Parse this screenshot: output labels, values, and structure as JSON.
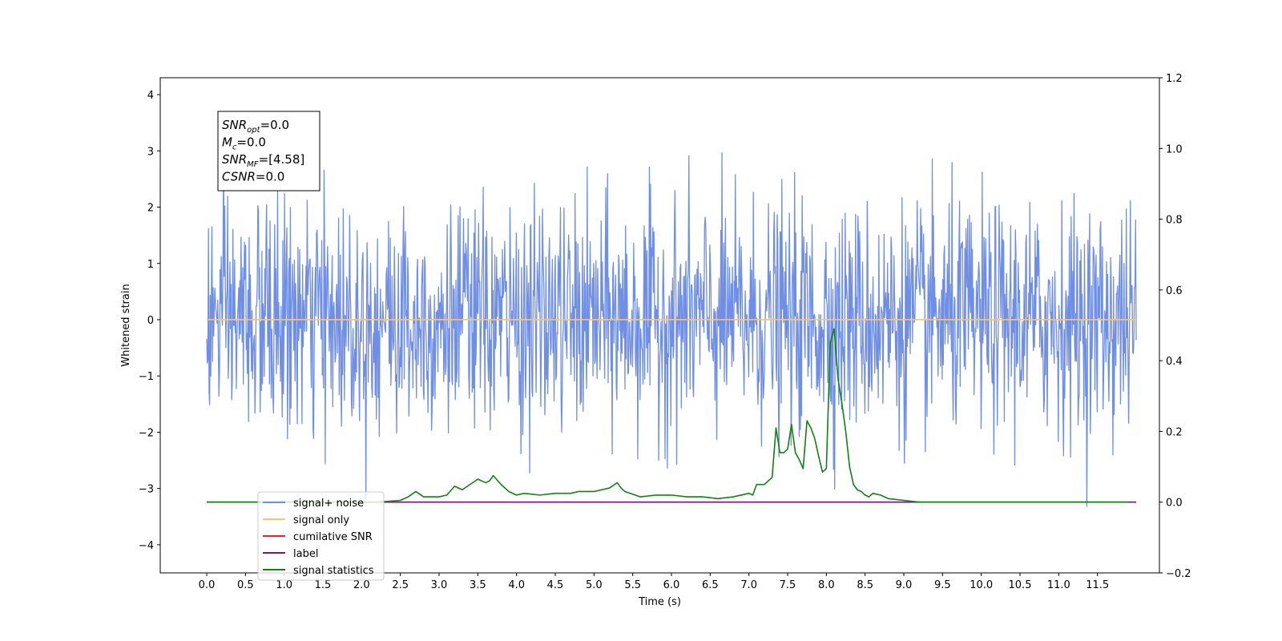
{
  "chart_data": {
    "type": "line",
    "xlabel": "Time (s)",
    "ylabel": "Whitened strain",
    "xlim": [
      -0.6,
      12.3
    ],
    "ylim": [
      -4.5,
      4.3
    ],
    "y2lim": [
      -0.2,
      1.2
    ],
    "x_ticks": [
      "0.0",
      "0.5",
      "1.0",
      "1.5",
      "2.0",
      "2.5",
      "3.0",
      "3.5",
      "4.0",
      "4.5",
      "5.0",
      "5.5",
      "6.0",
      "6.5",
      "7.0",
      "7.5",
      "8.0",
      "8.5",
      "9.0",
      "9.5",
      "10.0",
      "10.5",
      "11.0",
      "11.5"
    ],
    "y_ticks": [
      "−4",
      "−3",
      "−2",
      "−1",
      "0",
      "1",
      "2",
      "3",
      "4"
    ],
    "y2_ticks": [
      "−0.2",
      "0.0",
      "0.2",
      "0.4",
      "0.6",
      "0.8",
      "1.0",
      "1.2"
    ],
    "annotation": [
      {
        "base": "SNR",
        "sub": "opt",
        "rest": "=0.0"
      },
      {
        "base": "M",
        "sub": "c",
        "rest": "=0.0"
      },
      {
        "base": "SNR",
        "sub": "MF",
        "rest": "=[4.58]"
      },
      {
        "base": "CSNR",
        "sub": "",
        "rest": "=0.0"
      }
    ],
    "legend_position": "lower-left",
    "series": [
      {
        "name": "signal+ noise",
        "color": "#6f8ee6",
        "axis": "left",
        "kind": "noise",
        "x_range": [
          0.0,
          12.0
        ],
        "y_std": 1.0,
        "samples": 1600
      },
      {
        "name": "signal only",
        "color": "#ffc36e",
        "axis": "left",
        "kind": "constant",
        "x_range": [
          0.0,
          12.0
        ],
        "y": 0.0
      },
      {
        "name": "cumilative SNR",
        "color": "#e8262a",
        "axis": "right",
        "kind": "constant",
        "x_range": [
          0.0,
          12.0
        ],
        "y": 0.0
      },
      {
        "name": "label",
        "color": "#7a1583",
        "axis": "right",
        "kind": "constant",
        "x_range": [
          0.0,
          12.0
        ],
        "y": 0.0
      },
      {
        "name": "signal statistics",
        "color": "#128012",
        "axis": "right",
        "kind": "line",
        "x": [
          0.0,
          2.2,
          2.5,
          2.6,
          2.7,
          2.8,
          3.0,
          3.1,
          3.2,
          3.3,
          3.4,
          3.5,
          3.6,
          3.65,
          3.7,
          3.8,
          3.9,
          4.0,
          4.1,
          4.3,
          4.5,
          4.7,
          4.8,
          5.0,
          5.2,
          5.3,
          5.35,
          5.4,
          5.6,
          5.8,
          6.0,
          6.2,
          6.4,
          6.6,
          6.8,
          7.0,
          7.05,
          7.1,
          7.2,
          7.3,
          7.35,
          7.4,
          7.45,
          7.5,
          7.55,
          7.6,
          7.65,
          7.7,
          7.75,
          7.8,
          7.85,
          7.9,
          7.95,
          8.0,
          8.05,
          8.1,
          8.15,
          8.2,
          8.25,
          8.3,
          8.35,
          8.4,
          8.45,
          8.5,
          8.55,
          8.6,
          8.7,
          8.8,
          9.0,
          9.2,
          10.0,
          10.9,
          11.1,
          11.3,
          11.9
        ],
        "y": [
          0.0,
          0.0,
          0.005,
          0.015,
          0.03,
          0.015,
          0.015,
          0.02,
          0.045,
          0.035,
          0.05,
          0.065,
          0.055,
          0.06,
          0.075,
          0.05,
          0.03,
          0.02,
          0.025,
          0.02,
          0.025,
          0.025,
          0.03,
          0.03,
          0.04,
          0.055,
          0.04,
          0.03,
          0.015,
          0.02,
          0.02,
          0.015,
          0.015,
          0.01,
          0.015,
          0.025,
          0.02,
          0.05,
          0.05,
          0.07,
          0.21,
          0.14,
          0.14,
          0.15,
          0.22,
          0.14,
          0.12,
          0.095,
          0.23,
          0.21,
          0.18,
          0.13,
          0.085,
          0.095,
          0.45,
          0.49,
          0.35,
          0.28,
          0.2,
          0.1,
          0.05,
          0.035,
          0.03,
          0.02,
          0.015,
          0.025,
          0.02,
          0.01,
          0.005,
          0.0,
          0.0,
          0.0,
          0.0,
          0.0,
          0.0
        ]
      }
    ]
  }
}
